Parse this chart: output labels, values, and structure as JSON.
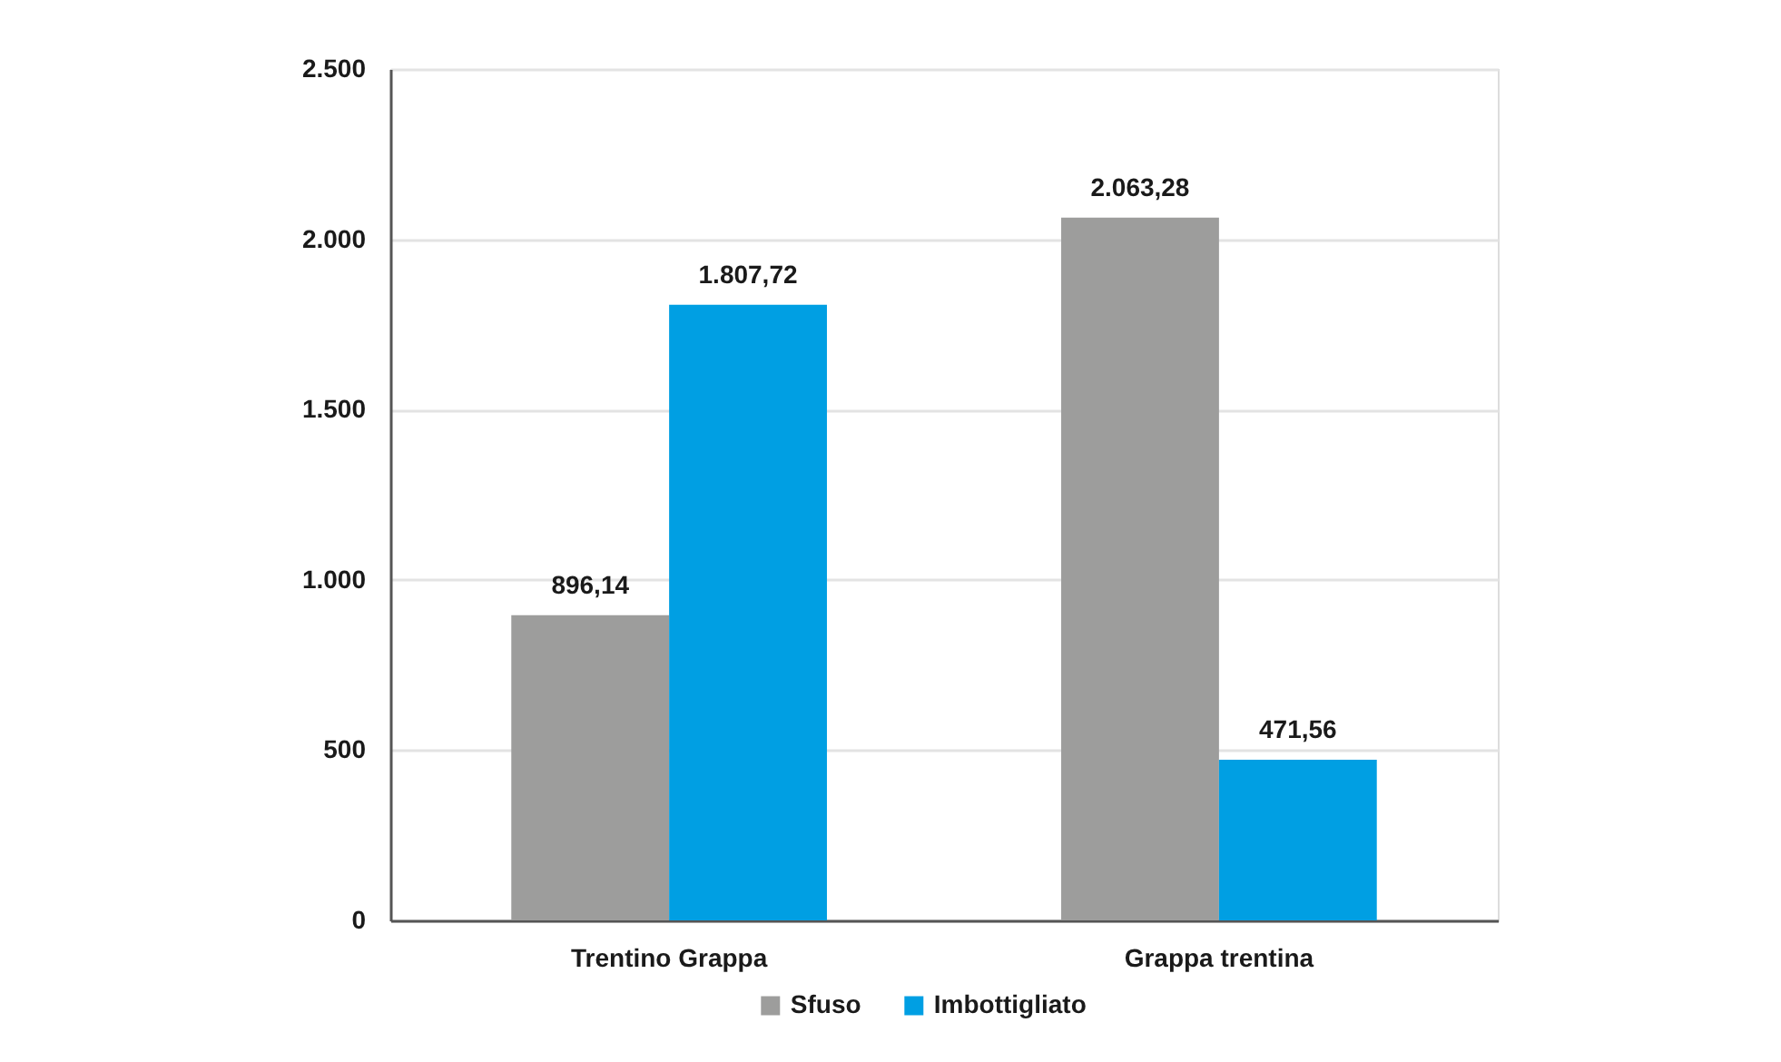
{
  "chart_data": {
    "type": "bar",
    "categories": [
      "Trentino Grappa",
      "Grappa trentina"
    ],
    "series": [
      {
        "name": "Sfuso",
        "color": "#9d9d9c",
        "values": [
          896.14,
          2063.28
        ],
        "value_labels": [
          "896,14",
          "2.063,28"
        ]
      },
      {
        "name": "Imbottigliato",
        "color": "#009fe3",
        "values": [
          1807.72,
          471.56
        ],
        "value_labels": [
          "1.807,72",
          "471,56"
        ]
      }
    ],
    "ylim": [
      0,
      2500
    ],
    "yticks": [
      0,
      500,
      {
        "value": 1000,
        "label": "1.000"
      },
      {
        "value": 1500,
        "label": "1.500"
      },
      {
        "value": 2000,
        "label": "2.000"
      },
      {
        "value": 2500,
        "label": "2.500"
      }
    ],
    "grid": "y",
    "legend": "bottom"
  }
}
